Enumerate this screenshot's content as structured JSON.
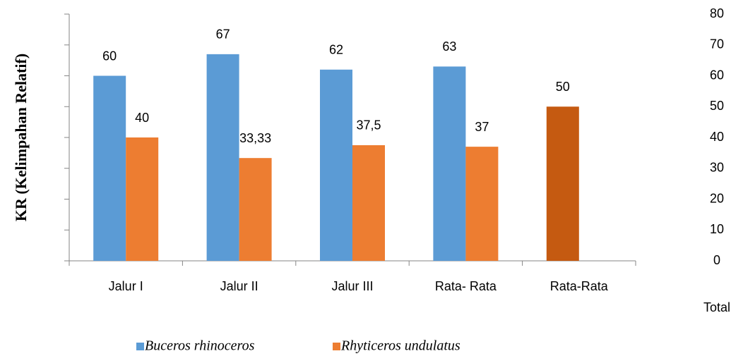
{
  "chart_data": {
    "type": "bar",
    "y_axis_label": "KR (Kelimpahan Relatif)",
    "annotation": "Total",
    "categories": [
      "Jalur I",
      "Jalur II",
      "Jalur III",
      "Rata- Rata",
      "Rata-Rata"
    ],
    "series": [
      {
        "name": "Buceros rhinoceros",
        "color": "#5b9bd5",
        "values": [
          60,
          67,
          62,
          63,
          50
        ],
        "point_colors": [
          "#5b9bd5",
          "#5b9bd5",
          "#5b9bd5",
          "#5b9bd5",
          "#c55a11"
        ]
      },
      {
        "name": "Rhyticeros undulatus",
        "color": "#ed7d31",
        "values": [
          40,
          33.33,
          37.5,
          37,
          null
        ],
        "value_labels": [
          "40",
          "33,33",
          "37,5",
          "37",
          null
        ]
      }
    ],
    "ylim": [
      0,
      80
    ],
    "yticks": [
      0,
      10,
      20,
      30,
      40,
      50,
      60,
      70,
      80
    ]
  }
}
